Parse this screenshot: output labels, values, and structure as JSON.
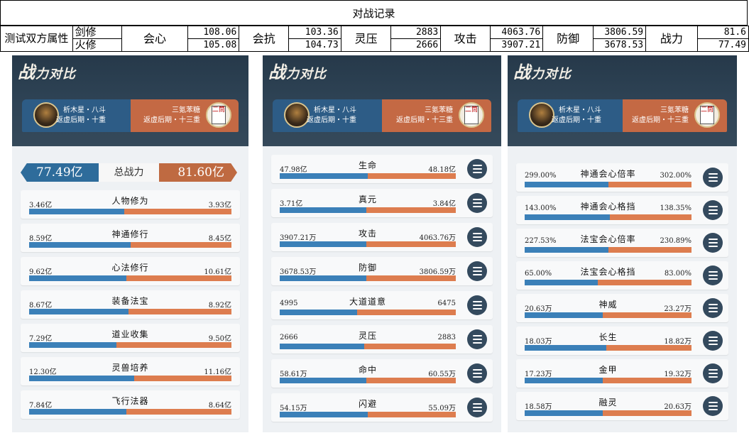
{
  "sheet": {
    "title": "对战记录",
    "row_label": "测试双方属性",
    "side_top": "剑修",
    "side_bottom": "火修",
    "stats": [
      {
        "label": "会心",
        "top": "108.06",
        "bottom": "105.08"
      },
      {
        "label": "会抗",
        "top": "103.36",
        "bottom": "104.73"
      },
      {
        "label": "灵压",
        "top": "2883",
        "bottom": "2666"
      },
      {
        "label": "攻击",
        "top": "4063.76",
        "bottom": "3907.21"
      },
      {
        "label": "防御",
        "top": "3806.59",
        "bottom": "3678.53"
      },
      {
        "label": "战力",
        "top": "81.6",
        "bottom": "77.49"
      }
    ]
  },
  "panel_header": {
    "title_big_1": "战",
    "title_small_1": "力",
    "title_big_2": "对比",
    "left_player_line1": "析木星・八斗",
    "left_player_line2": "返虚后期・十重",
    "right_player_line1": "三氪苯糖",
    "right_player_line2": "返虚后期・十三重",
    "right_avatar_tile": "二筒"
  },
  "colors": {
    "left_side": "#3b80b8",
    "right_side": "#dd7d4f",
    "header_bg": "#2f4456"
  },
  "panel1": {
    "total_left": "77.49亿",
    "total_label": "总战力",
    "total_right": "81.60亿",
    "rows": [
      {
        "name": "人物修为",
        "left": "3.46亿",
        "right": "3.93亿",
        "ratio": 0.47
      },
      {
        "name": "神通修行",
        "left": "8.59亿",
        "right": "8.45亿",
        "ratio": 0.5
      },
      {
        "name": "心法修行",
        "left": "9.62亿",
        "right": "10.61亿",
        "ratio": 0.48
      },
      {
        "name": "装备法宝",
        "left": "8.67亿",
        "right": "8.92亿",
        "ratio": 0.49
      },
      {
        "name": "道业收集",
        "left": "7.29亿",
        "right": "9.50亿",
        "ratio": 0.43
      },
      {
        "name": "灵兽培养",
        "left": "12.30亿",
        "right": "11.16亿",
        "ratio": 0.52
      },
      {
        "name": "飞行法器",
        "left": "7.84亿",
        "right": "8.64亿",
        "ratio": 0.48
      }
    ]
  },
  "panel2": {
    "rows": [
      {
        "name": "生命",
        "left": "47.98亿",
        "right": "48.18亿",
        "ratio": 0.5
      },
      {
        "name": "真元",
        "left": "3.71亿",
        "right": "3.84亿",
        "ratio": 0.49
      },
      {
        "name": "攻击",
        "left": "3907.21万",
        "right": "4063.76万",
        "ratio": 0.49
      },
      {
        "name": "防御",
        "left": "3678.53万",
        "right": "3806.59万",
        "ratio": 0.49
      },
      {
        "name": "大道道意",
        "left": "4995",
        "right": "6475",
        "ratio": 0.44
      },
      {
        "name": "灵压",
        "left": "2666",
        "right": "2883",
        "ratio": 0.48
      },
      {
        "name": "命中",
        "left": "58.61万",
        "right": "60.55万",
        "ratio": 0.49
      },
      {
        "name": "闪避",
        "left": "54.15万",
        "right": "55.09万",
        "ratio": 0.5
      }
    ]
  },
  "panel3": {
    "rows": [
      {
        "name": "神通会心倍率",
        "left": "299.00%",
        "right": "302.00%",
        "ratio": 0.5
      },
      {
        "name": "神通会心格挡",
        "left": "143.00%",
        "right": "138.35%",
        "ratio": 0.51
      },
      {
        "name": "法宝会心倍率",
        "left": "227.53%",
        "right": "230.89%",
        "ratio": 0.5
      },
      {
        "name": "法宝会心格挡",
        "left": "65.00%",
        "right": "83.00%",
        "ratio": 0.44
      },
      {
        "name": "神威",
        "left": "20.63万",
        "right": "23.27万",
        "ratio": 0.47
      },
      {
        "name": "长生",
        "left": "18.03万",
        "right": "18.82万",
        "ratio": 0.49
      },
      {
        "name": "金甲",
        "left": "17.23万",
        "right": "19.32万",
        "ratio": 0.47
      },
      {
        "name": "融灵",
        "left": "18.58万",
        "right": "20.63万",
        "ratio": 0.47
      }
    ]
  }
}
